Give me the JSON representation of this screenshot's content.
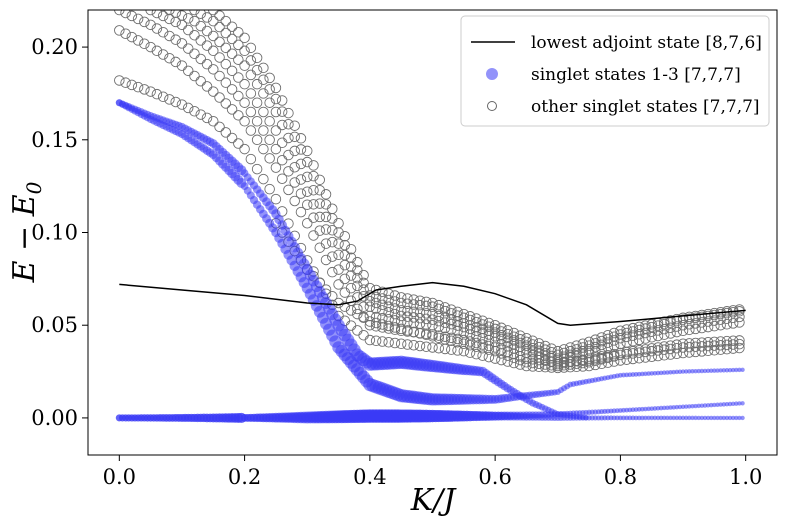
{
  "chart_data": {
    "type": "scatter",
    "xlabel": "K/J",
    "ylabel": "E − E0",
    "ylabel_main": "E − E",
    "ylabel_sub": "0",
    "xlim": [
      -0.05,
      1.05
    ],
    "ylim": [
      -0.02,
      0.22
    ],
    "x_ticks": [
      0.0,
      0.2,
      0.4,
      0.6,
      0.8,
      1.0
    ],
    "x_tick_labels": [
      "0.0",
      "0.2",
      "0.4",
      "0.6",
      "0.8",
      "1.0"
    ],
    "y_ticks": [
      0.0,
      0.05,
      0.1,
      0.15,
      0.2
    ],
    "y_tick_labels": [
      "0.00",
      "0.05",
      "0.10",
      "0.15",
      "0.20"
    ],
    "grid": false,
    "legend_position": "top-right",
    "legend": [
      {
        "label": "lowest adjoint state [8,7,6]",
        "marker": "line",
        "color": "#000000"
      },
      {
        "label": "singlet states 1-3 [7,7,7]",
        "marker": "filled-circle",
        "color": "#3b3bf5"
      },
      {
        "label": "other singlet states [7,7,7]",
        "marker": "open-circle",
        "color": "#808080"
      }
    ],
    "series": [
      {
        "name": "lowest adjoint state [8,7,6]",
        "kind": "line",
        "color": "#000000",
        "points": [
          [
            0.0,
            0.072
          ],
          [
            0.1,
            0.069
          ],
          [
            0.2,
            0.066
          ],
          [
            0.3,
            0.062
          ],
          [
            0.35,
            0.061
          ],
          [
            0.38,
            0.063
          ],
          [
            0.41,
            0.069
          ],
          [
            0.45,
            0.071
          ],
          [
            0.5,
            0.073
          ],
          [
            0.55,
            0.071
          ],
          [
            0.6,
            0.067
          ],
          [
            0.65,
            0.061
          ],
          [
            0.7,
            0.051
          ],
          [
            0.72,
            0.05
          ],
          [
            0.8,
            0.052
          ],
          [
            0.9,
            0.055
          ],
          [
            1.0,
            0.058
          ]
        ]
      },
      {
        "name": "singlet 1 (ground)",
        "kind": "filled",
        "color": "#3b3bf5",
        "points": [
          [
            0.0,
            0.0
          ],
          [
            0.1,
            0.0
          ],
          [
            0.2,
            0.0
          ],
          [
            0.3,
            0.0
          ],
          [
            0.4,
            0.001
          ],
          [
            0.5,
            0.001
          ],
          [
            0.6,
            0.001
          ],
          [
            0.7,
            0.0
          ],
          [
            0.8,
            0.0
          ],
          [
            0.9,
            0.0
          ],
          [
            1.0,
            0.0
          ]
        ]
      },
      {
        "name": "singlet 2",
        "kind": "filled",
        "color": "#3b3bf5",
        "points": [
          [
            0.0,
            0.0
          ],
          [
            0.2,
            0.0
          ],
          [
            0.4,
            0.001
          ],
          [
            0.5,
            0.001
          ],
          [
            0.6,
            0.001
          ],
          [
            0.7,
            0.002
          ],
          [
            0.8,
            0.004
          ],
          [
            0.9,
            0.006
          ],
          [
            1.0,
            0.008
          ]
        ]
      },
      {
        "name": "singlet 3 (upper branch)",
        "kind": "filled",
        "color": "#3b3bf5",
        "points": [
          [
            0.0,
            0.17
          ],
          [
            0.05,
            0.163
          ],
          [
            0.1,
            0.157
          ],
          [
            0.15,
            0.148
          ],
          [
            0.2,
            0.132
          ],
          [
            0.25,
            0.11
          ],
          [
            0.3,
            0.08
          ],
          [
            0.35,
            0.05
          ],
          [
            0.38,
            0.034
          ],
          [
            0.4,
            0.029
          ],
          [
            0.45,
            0.03
          ],
          [
            0.5,
            0.028
          ],
          [
            0.55,
            0.026
          ],
          [
            0.58,
            0.025
          ]
        ]
      },
      {
        "name": "singlet 3 (lower branch)",
        "kind": "filled",
        "color": "#3b3bf5",
        "points": [
          [
            0.0,
            0.17
          ],
          [
            0.05,
            0.161
          ],
          [
            0.1,
            0.153
          ],
          [
            0.15,
            0.142
          ],
          [
            0.2,
            0.125
          ],
          [
            0.25,
            0.1
          ],
          [
            0.3,
            0.07
          ],
          [
            0.35,
            0.038
          ],
          [
            0.4,
            0.018
          ],
          [
            0.45,
            0.012
          ],
          [
            0.5,
            0.01
          ],
          [
            0.55,
            0.01
          ],
          [
            0.6,
            0.01
          ],
          [
            0.65,
            0.012
          ],
          [
            0.7,
            0.014
          ],
          [
            0.72,
            0.018
          ],
          [
            0.8,
            0.023
          ],
          [
            0.9,
            0.025
          ],
          [
            1.0,
            0.026
          ]
        ]
      },
      {
        "name": "singlet crossing",
        "kind": "filled",
        "color": "#3b3bf5",
        "points": [
          [
            0.58,
            0.025
          ],
          [
            0.62,
            0.016
          ],
          [
            0.66,
            0.008
          ],
          [
            0.7,
            0.002
          ],
          [
            0.75,
            0.0
          ]
        ]
      },
      {
        "name": "other 1",
        "kind": "open",
        "color": "#808080",
        "points": [
          [
            0.0,
            0.182
          ],
          [
            0.05,
            0.176
          ],
          [
            0.1,
            0.169
          ],
          [
            0.15,
            0.16
          ],
          [
            0.2,
            0.145
          ],
          [
            0.25,
            0.118
          ],
          [
            0.3,
            0.085
          ],
          [
            0.35,
            0.055
          ],
          [
            0.4,
            0.042
          ],
          [
            0.45,
            0.04
          ],
          [
            0.5,
            0.038
          ],
          [
            0.55,
            0.036
          ],
          [
            0.6,
            0.032
          ],
          [
            0.65,
            0.028
          ],
          [
            0.7,
            0.027
          ],
          [
            0.75,
            0.028
          ],
          [
            0.8,
            0.031
          ],
          [
            0.9,
            0.035
          ],
          [
            1.0,
            0.038
          ]
        ]
      },
      {
        "name": "other 2",
        "kind": "open",
        "color": "#808080",
        "points": [
          [
            0.0,
            0.209
          ],
          [
            0.05,
            0.2
          ],
          [
            0.1,
            0.19
          ],
          [
            0.15,
            0.176
          ],
          [
            0.2,
            0.16
          ],
          [
            0.25,
            0.135
          ],
          [
            0.3,
            0.105
          ],
          [
            0.35,
            0.072
          ],
          [
            0.4,
            0.05
          ],
          [
            0.45,
            0.047
          ],
          [
            0.5,
            0.045
          ],
          [
            0.55,
            0.042
          ],
          [
            0.6,
            0.038
          ],
          [
            0.65,
            0.032
          ],
          [
            0.7,
            0.03
          ],
          [
            0.75,
            0.031
          ],
          [
            0.8,
            0.034
          ],
          [
            0.9,
            0.038
          ],
          [
            1.0,
            0.04
          ]
        ]
      },
      {
        "name": "other 3",
        "kind": "open",
        "color": "#808080",
        "points": [
          [
            0.0,
            0.22
          ],
          [
            0.05,
            0.212
          ],
          [
            0.1,
            0.202
          ],
          [
            0.15,
            0.188
          ],
          [
            0.2,
            0.17
          ],
          [
            0.25,
            0.145
          ],
          [
            0.3,
            0.115
          ],
          [
            0.35,
            0.08
          ],
          [
            0.4,
            0.055
          ],
          [
            0.45,
            0.052
          ],
          [
            0.5,
            0.05
          ],
          [
            0.55,
            0.046
          ],
          [
            0.6,
            0.041
          ],
          [
            0.65,
            0.035
          ],
          [
            0.7,
            0.029
          ],
          [
            0.75,
            0.032
          ],
          [
            0.8,
            0.035
          ],
          [
            0.9,
            0.04
          ],
          [
            1.0,
            0.042
          ]
        ]
      },
      {
        "name": "other 4",
        "kind": "open",
        "color": "#808080",
        "points": [
          [
            0.05,
            0.22
          ],
          [
            0.1,
            0.212
          ],
          [
            0.15,
            0.198
          ],
          [
            0.2,
            0.18
          ],
          [
            0.25,
            0.155
          ],
          [
            0.3,
            0.122
          ],
          [
            0.35,
            0.088
          ],
          [
            0.4,
            0.06
          ],
          [
            0.45,
            0.055
          ],
          [
            0.5,
            0.053
          ],
          [
            0.55,
            0.049
          ],
          [
            0.6,
            0.044
          ],
          [
            0.65,
            0.037
          ],
          [
            0.7,
            0.031
          ],
          [
            0.75,
            0.035
          ],
          [
            0.8,
            0.04
          ],
          [
            0.9,
            0.047
          ],
          [
            1.0,
            0.052
          ]
        ]
      },
      {
        "name": "other 5",
        "kind": "open",
        "color": "#808080",
        "points": [
          [
            0.08,
            0.22
          ],
          [
            0.12,
            0.214
          ],
          [
            0.15,
            0.206
          ],
          [
            0.2,
            0.19
          ],
          [
            0.25,
            0.165
          ],
          [
            0.3,
            0.13
          ],
          [
            0.35,
            0.094
          ],
          [
            0.4,
            0.063
          ],
          [
            0.45,
            0.058
          ],
          [
            0.5,
            0.056
          ],
          [
            0.55,
            0.051
          ],
          [
            0.6,
            0.046
          ],
          [
            0.65,
            0.039
          ],
          [
            0.7,
            0.032
          ],
          [
            0.75,
            0.037
          ],
          [
            0.8,
            0.043
          ],
          [
            0.9,
            0.05
          ],
          [
            1.0,
            0.055
          ]
        ]
      },
      {
        "name": "other 6",
        "kind": "open",
        "color": "#808080",
        "points": [
          [
            0.12,
            0.22
          ],
          [
            0.15,
            0.214
          ],
          [
            0.2,
            0.198
          ],
          [
            0.25,
            0.172
          ],
          [
            0.3,
            0.138
          ],
          [
            0.35,
            0.1
          ],
          [
            0.4,
            0.066
          ],
          [
            0.45,
            0.062
          ],
          [
            0.5,
            0.06
          ],
          [
            0.55,
            0.054
          ],
          [
            0.6,
            0.048
          ],
          [
            0.65,
            0.041
          ],
          [
            0.7,
            0.034
          ],
          [
            0.75,
            0.039
          ],
          [
            0.8,
            0.045
          ],
          [
            0.9,
            0.053
          ],
          [
            1.0,
            0.058
          ]
        ]
      },
      {
        "name": "other 7",
        "kind": "open",
        "color": "#808080",
        "points": [
          [
            0.15,
            0.22
          ],
          [
            0.2,
            0.205
          ],
          [
            0.25,
            0.178
          ],
          [
            0.3,
            0.144
          ],
          [
            0.35,
            0.105
          ],
          [
            0.4,
            0.07
          ],
          [
            0.45,
            0.065
          ],
          [
            0.5,
            0.062
          ],
          [
            0.55,
            0.056
          ],
          [
            0.6,
            0.05
          ],
          [
            0.65,
            0.043
          ],
          [
            0.7,
            0.036
          ],
          [
            0.75,
            0.041
          ],
          [
            0.8,
            0.047
          ],
          [
            0.9,
            0.054
          ],
          [
            1.0,
            0.059
          ]
        ]
      },
      {
        "name": "other 8",
        "kind": "open",
        "color": "#808080",
        "points": [
          [
            0.25,
            0.105
          ],
          [
            0.3,
            0.08
          ],
          [
            0.35,
            0.062
          ],
          [
            0.4,
            0.052
          ],
          [
            0.45,
            0.048
          ],
          [
            0.5,
            0.044
          ],
          [
            0.55,
            0.04
          ],
          [
            0.6,
            0.036
          ],
          [
            0.65,
            0.03
          ],
          [
            0.7,
            0.028
          ],
          [
            0.75,
            0.03
          ],
          [
            0.8,
            0.034
          ]
        ]
      }
    ]
  }
}
